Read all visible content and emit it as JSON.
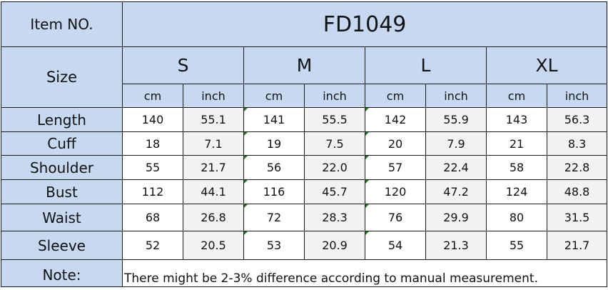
{
  "header": {
    "item_label": "Item NO.",
    "item_number": "FD1049",
    "size_label": "Size",
    "sizes": [
      "S",
      "M",
      "L",
      "XL"
    ],
    "units": [
      "cm",
      "inch",
      "cm",
      "inch",
      "cm",
      "inch",
      "cm",
      "inch"
    ]
  },
  "rows": [
    {
      "label": "Length",
      "values": [
        "140",
        "55.1",
        "141",
        "55.5",
        "142",
        "55.9",
        "143",
        "56.3"
      ]
    },
    {
      "label": "Cuff",
      "values": [
        "18",
        "7.1",
        "19",
        "7.5",
        "20",
        "7.9",
        "21",
        "8.3"
      ]
    },
    {
      "label": "Shoulder",
      "values": [
        "55",
        "21.7",
        "56",
        "22.0",
        "57",
        "22.4",
        "58",
        "22.8"
      ]
    },
    {
      "label": "Bust",
      "values": [
        "112",
        "44.1",
        "116",
        "45.7",
        "120",
        "47.2",
        "124",
        "48.8"
      ]
    },
    {
      "label": "Waist",
      "values": [
        "68",
        "26.8",
        "72",
        "28.3",
        "76",
        "29.9",
        "80",
        "31.5"
      ]
    },
    {
      "label": "Sleeve",
      "values": [
        "52",
        "20.5",
        "53",
        "20.9",
        "54",
        "21.3",
        "55",
        "21.7"
      ]
    }
  ],
  "note": {
    "label": "Note:",
    "text": "There might be 2-3% difference according to manual measurement."
  },
  "colors": {
    "header_fill": "#c6d9f1",
    "inch_column_fill": "#f2f2f2",
    "border": "#1a1a1a"
  }
}
